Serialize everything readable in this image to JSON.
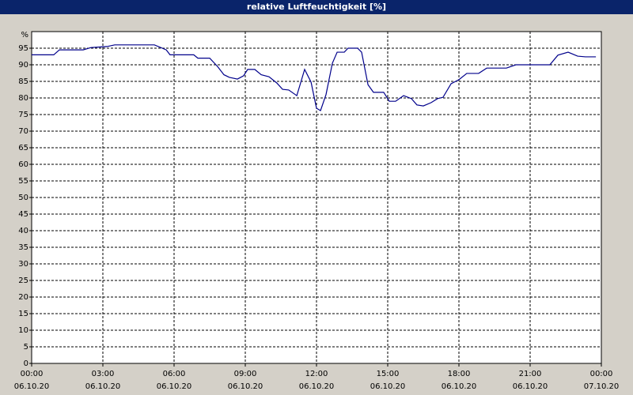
{
  "chart_data": {
    "type": "line",
    "title": "relative Luftfeuchtigkeit [%]",
    "y_unit_label": "%",
    "color": "#00008b",
    "grid": true,
    "xlim": [
      0,
      24
    ],
    "ylim": [
      0,
      100
    ],
    "xticks": [
      {
        "value": 0,
        "label": "00:00"
      },
      {
        "value": 3,
        "label": "03:00"
      },
      {
        "value": 6,
        "label": "06:00"
      },
      {
        "value": 9,
        "label": "09:00"
      },
      {
        "value": 12,
        "label": "12:00"
      },
      {
        "value": 15,
        "label": "15:00"
      },
      {
        "value": 18,
        "label": "18:00"
      },
      {
        "value": 21,
        "label": "21:00"
      },
      {
        "value": 24,
        "label": "00:00"
      }
    ],
    "xtick_dates": [
      "06.10.20",
      "06.10.20",
      "06.10.20",
      "06.10.20",
      "06.10.20",
      "06.10.20",
      "06.10.20",
      "06.10.20",
      "07.10.20"
    ],
    "yticks": [
      0,
      5,
      10,
      15,
      20,
      25,
      30,
      35,
      40,
      45,
      50,
      55,
      60,
      65,
      70,
      75,
      80,
      85,
      90,
      95
    ],
    "x": [
      0,
      0.93,
      1.17,
      2.17,
      2.5,
      3.17,
      3.5,
      5.17,
      5.67,
      5.83,
      6.83,
      7.0,
      7.5,
      7.83,
      8.1,
      8.33,
      8.67,
      8.93,
      9.1,
      9.4,
      9.67,
      10.0,
      10.33,
      10.57,
      10.83,
      11.17,
      11.5,
      11.77,
      12.0,
      12.17,
      12.4,
      12.67,
      12.87,
      13.17,
      13.33,
      13.73,
      13.9,
      14.17,
      14.4,
      14.83,
      15.07,
      15.33,
      15.67,
      16.0,
      16.23,
      16.5,
      16.83,
      17.1,
      17.33,
      17.67,
      18.0,
      18.33,
      18.83,
      19.17,
      20.0,
      20.4,
      21.83,
      22.17,
      22.6,
      23.0,
      23.33,
      23.77
    ],
    "values": [
      93,
      93,
      94.5,
      94.5,
      95.2,
      95.5,
      96,
      96,
      94.5,
      93,
      93,
      92,
      92,
      89.5,
      87,
      86.2,
      85.7,
      86.7,
      88.6,
      88.6,
      87,
      86.4,
      84.5,
      82.6,
      82.4,
      80.7,
      88.6,
      84.8,
      76.9,
      76.2,
      81,
      90.5,
      93.8,
      93.8,
      95,
      95,
      93.8,
      84,
      81.7,
      81.7,
      79,
      79,
      80.7,
      79.8,
      77.9,
      77.6,
      78.6,
      79.8,
      80.2,
      84.3,
      85.5,
      87.4,
      87.4,
      89,
      89,
      90,
      90,
      92.9,
      93.8,
      92.6,
      92.4,
      92.4
    ]
  }
}
